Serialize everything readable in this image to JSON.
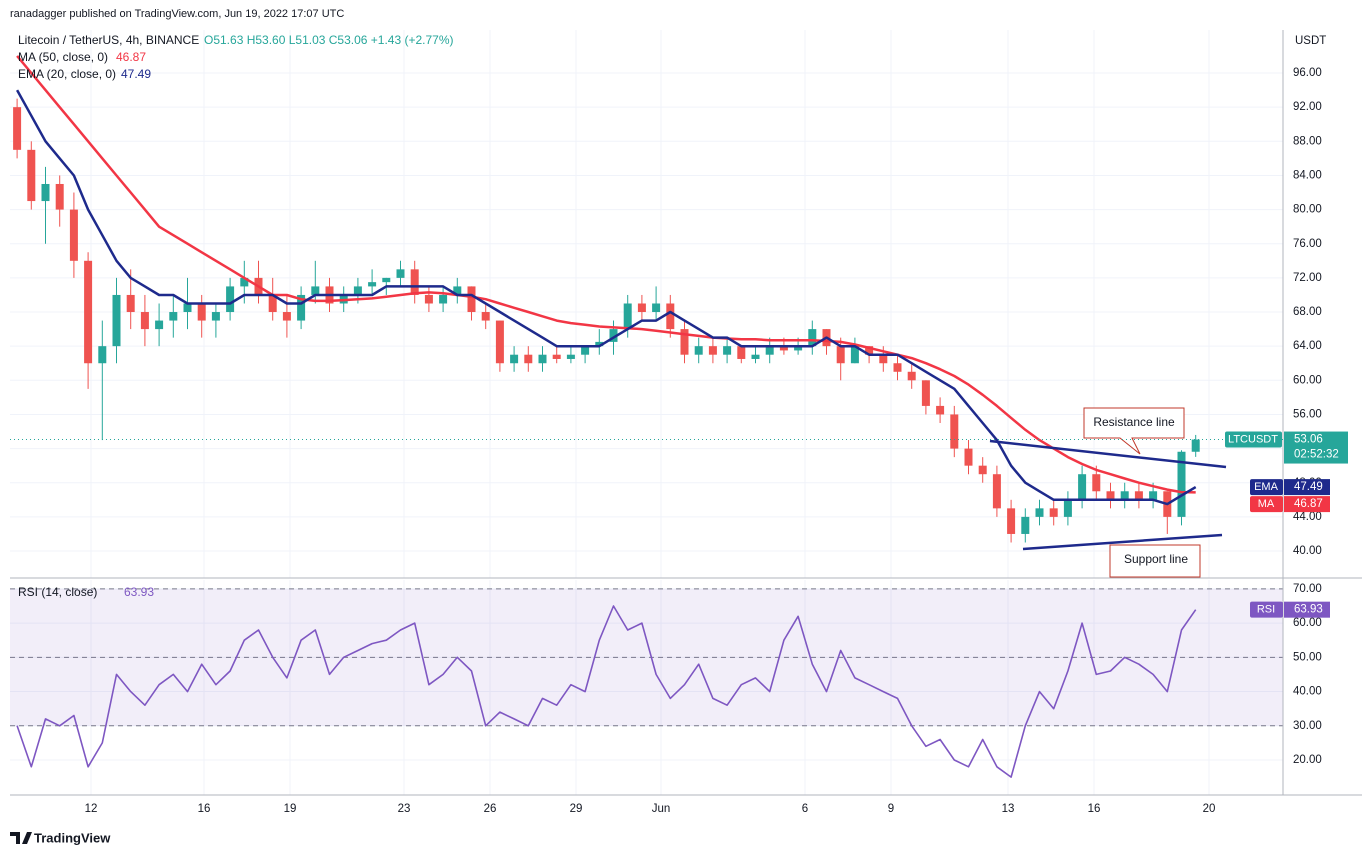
{
  "publisher": "ranadagger published on TradingView.com, Jun 19, 2022 17:07 UTC",
  "footer": "TradingView",
  "chart_data": {
    "type": "candlestick",
    "title": "Litecoin / TetherUS, 4h, BINANCE",
    "ohlc_text": "O51.63 H53.60 L51.03 C53.06 +1.43 (+2.77%)",
    "currency": "USDT",
    "symbol": "LTCUSDT",
    "countdown": "02:52:32",
    "up_color": "#26a69a",
    "down_color": "#ef5350",
    "candles": [
      [
        92,
        93,
        86,
        87
      ],
      [
        87,
        88,
        80,
        81
      ],
      [
        81,
        85,
        76,
        83
      ],
      [
        83,
        84,
        78,
        80
      ],
      [
        80,
        82,
        72,
        74
      ],
      [
        74,
        75,
        59,
        62
      ],
      [
        62,
        67,
        53,
        64
      ],
      [
        64,
        72,
        62,
        70
      ],
      [
        70,
        73,
        66,
        68
      ],
      [
        68,
        70,
        64,
        66
      ],
      [
        66,
        69,
        64,
        67
      ],
      [
        67,
        70,
        65,
        68
      ],
      [
        68,
        72,
        66,
        69
      ],
      [
        69,
        70,
        65,
        67
      ],
      [
        67,
        69,
        65,
        68
      ],
      [
        68,
        72,
        67,
        71
      ],
      [
        71,
        74,
        69,
        72
      ],
      [
        72,
        74,
        69,
        70
      ],
      [
        70,
        72,
        67,
        68
      ],
      [
        68,
        70,
        65,
        67
      ],
      [
        67,
        71,
        66,
        70
      ],
      [
        70,
        74,
        69,
        71
      ],
      [
        71,
        72,
        68,
        69
      ],
      [
        69,
        71,
        68,
        70
      ],
      [
        70,
        72,
        69,
        71
      ],
      [
        71,
        73,
        70,
        71.5
      ],
      [
        71.5,
        72,
        70,
        72
      ],
      [
        72,
        74,
        71,
        73
      ],
      [
        73,
        74,
        69,
        70
      ],
      [
        70,
        71,
        68,
        69
      ],
      [
        69,
        71,
        68,
        70
      ],
      [
        70,
        72,
        69,
        71
      ],
      [
        71,
        71,
        67,
        68
      ],
      [
        68,
        69,
        66,
        67
      ],
      [
        67,
        67,
        61,
        62
      ],
      [
        62,
        64,
        61,
        63
      ],
      [
        63,
        64,
        61,
        62
      ],
      [
        62,
        64,
        61,
        63
      ],
      [
        63,
        64,
        62,
        62.5
      ],
      [
        62.5,
        64,
        62,
        63
      ],
      [
        63,
        64,
        62,
        64
      ],
      [
        64,
        66,
        63,
        64.5
      ],
      [
        64.5,
        67,
        63,
        66
      ],
      [
        66,
        70,
        65,
        69
      ],
      [
        69,
        70,
        67,
        68
      ],
      [
        68,
        71,
        67,
        69
      ],
      [
        69,
        70,
        65,
        66
      ],
      [
        66,
        67,
        62,
        63
      ],
      [
        63,
        65,
        62,
        64
      ],
      [
        64,
        65,
        62,
        63
      ],
      [
        63,
        65,
        62,
        64
      ],
      [
        64,
        64,
        62,
        62.5
      ],
      [
        62.5,
        64,
        62,
        63
      ],
      [
        63,
        65,
        62,
        64
      ],
      [
        64,
        65,
        63,
        63.5
      ],
      [
        63.5,
        65,
        63,
        64
      ],
      [
        64,
        67,
        63,
        66
      ],
      [
        66,
        66,
        63,
        64
      ],
      [
        64,
        65,
        60,
        62
      ],
      [
        62,
        65,
        62,
        64
      ],
      [
        64,
        64,
        62,
        63
      ],
      [
        63,
        64,
        61,
        62
      ],
      [
        62,
        63,
        60,
        61
      ],
      [
        61,
        62,
        59,
        60
      ],
      [
        60,
        60,
        56,
        57
      ],
      [
        57,
        58,
        55,
        56
      ],
      [
        56,
        57,
        51,
        52
      ],
      [
        52,
        53,
        49,
        50
      ],
      [
        50,
        51,
        48,
        49
      ],
      [
        49,
        50,
        44,
        45
      ],
      [
        45,
        46,
        41,
        42
      ],
      [
        42,
        45,
        41,
        44
      ],
      [
        44,
        46,
        43,
        45
      ],
      [
        45,
        46,
        43,
        44
      ],
      [
        44,
        47,
        43,
        46
      ],
      [
        46,
        50,
        45,
        49
      ],
      [
        49,
        50,
        46,
        47
      ],
      [
        47,
        48,
        45,
        46
      ],
      [
        46,
        48,
        45,
        47
      ],
      [
        47,
        48,
        45,
        46
      ],
      [
        46,
        48,
        45,
        47
      ],
      [
        47,
        47,
        42,
        44
      ],
      [
        44,
        51.8,
        43,
        51.63
      ],
      [
        51.63,
        53.6,
        51.03,
        53.06
      ]
    ],
    "series": [
      {
        "name": "MA (50, close, 0)",
        "short": "MA",
        "color": "#f23645",
        "values": [
          98,
          96,
          94,
          92,
          90,
          88,
          86,
          84,
          82,
          80,
          78,
          77,
          76,
          75,
          74,
          73,
          72,
          71,
          70,
          70,
          69.5,
          69.3,
          69.3,
          69.4,
          69.5,
          69.6,
          69.8,
          70,
          70.2,
          70.3,
          70.2,
          70,
          69.8,
          69.5,
          69,
          68.5,
          68,
          67.5,
          67,
          66.7,
          66.5,
          66.3,
          66.2,
          66.1,
          66,
          65.8,
          65.6,
          65.4,
          65.2,
          65,
          64.9,
          64.8,
          64.8,
          64.7,
          64.7,
          64.7,
          64.7,
          64.6,
          64.5,
          64.2,
          63.8,
          63.4,
          63,
          62.6,
          62,
          61.3,
          60.5,
          59.5,
          58.3,
          57,
          55.6,
          54.2,
          53,
          52,
          51,
          50.2,
          49.5,
          49,
          48.5,
          48,
          47.6,
          47.2,
          46.9,
          46.87
        ]
      },
      {
        "name": "EMA (20, close, 0)",
        "short": "EMA",
        "color": "#1e2a8c",
        "values": [
          94,
          91,
          88,
          86,
          84,
          80,
          77,
          74,
          72,
          71,
          70,
          70,
          69,
          69,
          69,
          69,
          70,
          70,
          70,
          69,
          69,
          70,
          70,
          70,
          70,
          70,
          71,
          71,
          71,
          71,
          71,
          70,
          70,
          69,
          68,
          67,
          66,
          65,
          64,
          64,
          64,
          64,
          65,
          66,
          67,
          67,
          68,
          67,
          66,
          65,
          65,
          64,
          64,
          64,
          64,
          64,
          64,
          65,
          64,
          64,
          63,
          63,
          63,
          62,
          61,
          60,
          59,
          57,
          55,
          53,
          50,
          48,
          47,
          46,
          46,
          46,
          46,
          46,
          46,
          46,
          46,
          45.5,
          46.5,
          47.49
        ]
      }
    ],
    "ylim": [
      36.84,
      101.04
    ],
    "yticks": [
      {
        "value": 96,
        "label": "96.00"
      },
      {
        "value": 92,
        "label": "92.00"
      },
      {
        "value": 88,
        "label": "88.00"
      },
      {
        "value": 84,
        "label": "84.00"
      },
      {
        "value": 80,
        "label": "80.00"
      },
      {
        "value": 76,
        "label": "76.00"
      },
      {
        "value": 72,
        "label": "72.00"
      },
      {
        "value": 68,
        "label": "68.00"
      },
      {
        "value": 64,
        "label": "64.00"
      },
      {
        "value": 60,
        "label": "60.00"
      },
      {
        "value": 56,
        "label": "56.00"
      },
      {
        "value": 52,
        "label": "52.00"
      },
      {
        "value": 48,
        "label": "48.00"
      },
      {
        "value": 44,
        "label": "44.00"
      },
      {
        "value": 40,
        "label": "40.00"
      }
    ],
    "xticks": [
      "12",
      "16",
      "19",
      "23",
      "26",
      "29",
      "Jun",
      "6",
      "9",
      "13",
      "16",
      "20"
    ],
    "grid": true,
    "annotations": [
      "Resistance line",
      "Support line"
    ],
    "rsi": {
      "name": "RSI (14, close)",
      "short": "RSI",
      "color": "#7e57c2",
      "values": [
        30,
        18,
        32,
        30,
        33,
        18,
        25,
        45,
        40,
        36,
        42,
        45,
        40,
        48,
        42,
        46,
        55,
        58,
        50,
        44,
        55,
        58,
        45,
        50,
        52,
        54,
        55,
        58,
        60,
        42,
        45,
        50,
        46,
        30,
        34,
        32,
        30,
        38,
        36,
        42,
        40,
        55,
        65,
        58,
        60,
        45,
        38,
        42,
        48,
        38,
        36,
        42,
        44,
        40,
        55,
        62,
        48,
        40,
        52,
        44,
        42,
        40,
        38,
        30,
        24,
        26,
        20,
        18,
        26,
        18,
        15,
        30,
        40,
        35,
        46,
        60,
        45,
        46,
        50,
        48,
        45,
        40,
        58,
        63.93
      ],
      "ylim": [
        9.77,
        72.6
      ],
      "yticks": [
        {
          "value": 70,
          "label": "70.00"
        },
        {
          "value": 60,
          "label": "60.00"
        },
        {
          "value": 50,
          "label": "50.00"
        },
        {
          "value": 40,
          "label": "40.00"
        },
        {
          "value": 30,
          "label": "30.00"
        },
        {
          "value": 20,
          "label": "20.00"
        }
      ],
      "band": [
        30,
        70
      ]
    }
  }
}
